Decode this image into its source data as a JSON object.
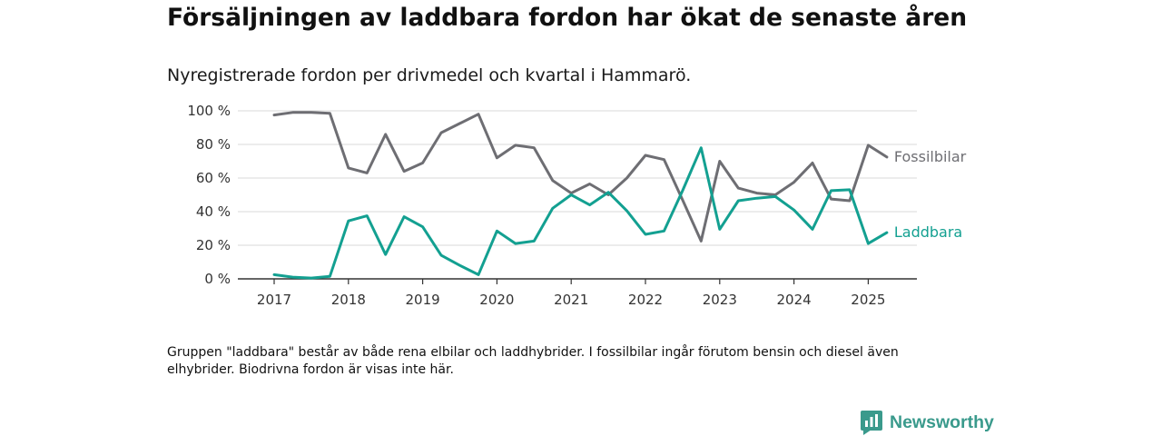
{
  "title": "Försäljningen av laddbara fordon har ökat de senaste åren",
  "subtitle": "Nyregistrerade fordon per drivmedel och kvartal i Hammarö.",
  "footnote": "Gruppen \"laddbara\" består av både rena elbilar och laddhybrider. I fossilbilar ingår förutom bensin och diesel även elhybrider. Biodrivna fordon är visas inte här.",
  "brand": {
    "name": "Newsworthy",
    "color": "#3a9a8c",
    "icon": "bar-chart-speech-bubble-icon"
  },
  "colors": {
    "grid": "#d9d9d9",
    "axis": "#333333"
  },
  "chart_data": {
    "type": "line",
    "x_unit": "quarter",
    "x": [
      "2017 Q1",
      "2017 Q2",
      "2017 Q3",
      "2017 Q4",
      "2018 Q1",
      "2018 Q2",
      "2018 Q3",
      "2018 Q4",
      "2019 Q1",
      "2019 Q2",
      "2019 Q3",
      "2019 Q4",
      "2020 Q1",
      "2020 Q2",
      "2020 Q3",
      "2020 Q4",
      "2021 Q1",
      "2021 Q2",
      "2021 Q3",
      "2021 Q4",
      "2022 Q1",
      "2022 Q2",
      "2022 Q3",
      "2022 Q4",
      "2023 Q1",
      "2023 Q2",
      "2023 Q3",
      "2023 Q4",
      "2024 Q1",
      "2024 Q2",
      "2024 Q3",
      "2024 Q4",
      "2025 Q1",
      "2025 Q2"
    ],
    "ylim": [
      0,
      100
    ],
    "yticks": [
      {
        "value": 0,
        "label": "0 %"
      },
      {
        "value": 20,
        "label": "20 %"
      },
      {
        "value": 40,
        "label": "40 %"
      },
      {
        "value": 60,
        "label": "60 %"
      },
      {
        "value": 80,
        "label": "80 %"
      },
      {
        "value": 100,
        "label": "100 %"
      }
    ],
    "xticks": [
      {
        "value": "2017 Q1",
        "label": "2017"
      },
      {
        "value": "2018 Q1",
        "label": "2018"
      },
      {
        "value": "2019 Q1",
        "label": "2019"
      },
      {
        "value": "2020 Q1",
        "label": "2020"
      },
      {
        "value": "2021 Q1",
        "label": "2021"
      },
      {
        "value": "2022 Q1",
        "label": "2022"
      },
      {
        "value": "2023 Q1",
        "label": "2023"
      },
      {
        "value": "2024 Q1",
        "label": "2024"
      },
      {
        "value": "2025 Q1",
        "label": "2025"
      }
    ],
    "grid": "horizontal",
    "series": [
      {
        "name": "Fossilbilar",
        "color": "#6e6e73",
        "values": [
          97.5,
          99,
          99,
          98.5,
          66,
          63,
          86,
          64,
          69,
          87,
          92.5,
          98,
          72,
          79.5,
          78,
          58.5,
          51,
          56.5,
          50,
          60,
          73.5,
          71,
          47,
          22.5,
          70,
          54,
          51,
          50,
          57.5,
          69,
          47.5,
          46.5,
          79.5,
          72.5
        ]
      },
      {
        "name": "Laddbara",
        "color": "#13a091",
        "values": [
          2.5,
          1,
          0.5,
          1.5,
          34.5,
          37.5,
          14.5,
          37,
          31,
          14,
          8,
          2.5,
          28.5,
          21,
          22.5,
          42,
          50,
          44,
          51.5,
          40.5,
          26.5,
          28.5,
          52.5,
          78,
          29.5,
          46.5,
          48,
          49,
          41,
          29.5,
          52.5,
          53,
          21,
          27.5
        ]
      }
    ]
  }
}
